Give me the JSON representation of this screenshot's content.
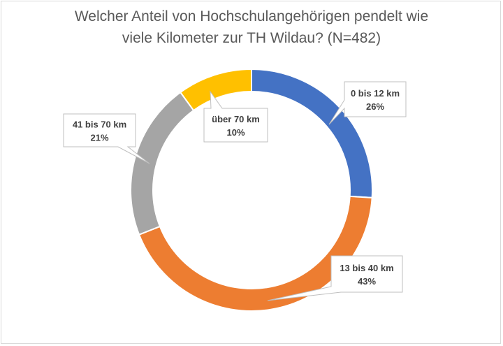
{
  "chart_data": {
    "type": "pie",
    "variant": "doughnut",
    "title_lines": [
      "Welcher Anteil von Hochschulangehörigen pendelt wie",
      "viele Kilometer zur TH Wildau? (N=482)"
    ],
    "categories": [
      "0 bis 12 km",
      "13 bis 40 km",
      "41 bis 70 km",
      "über 70 km"
    ],
    "values": [
      26,
      43,
      21,
      10
    ],
    "value_labels": [
      "26%",
      "43%",
      "21%",
      "10%"
    ],
    "colors": [
      "#4472C4",
      "#ED7D31",
      "#A5A5A5",
      "#FFC000"
    ],
    "legend": "none"
  }
}
